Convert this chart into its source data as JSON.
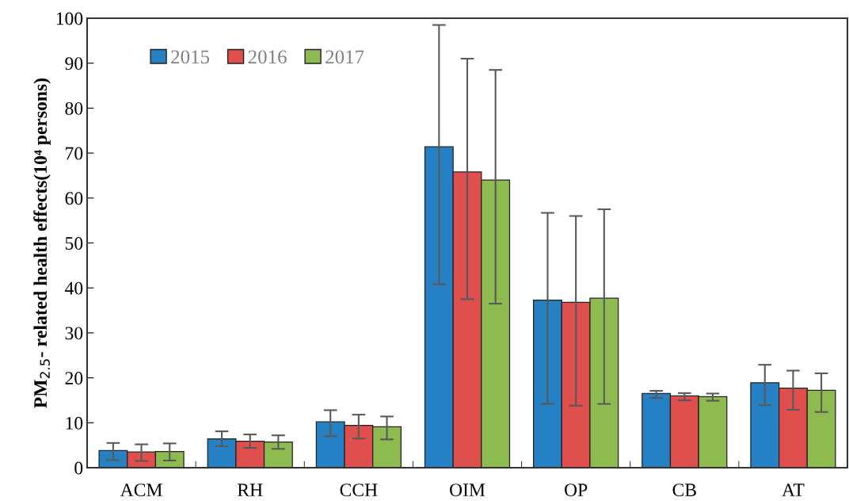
{
  "chart_data": {
    "type": "bar",
    "ylabel": "PM$_{2.5}$- related health effects(10⁴ persons)",
    "categories": [
      "ACM",
      "RH",
      "CCH",
      "OIM",
      "OP",
      "CB",
      "AT"
    ],
    "series": [
      {
        "name": "2015",
        "color": "#2581c4",
        "values": [
          3.8,
          6.4,
          10.2,
          71.4,
          37.3,
          16.5,
          18.9
        ],
        "errors": [
          [
            1.7,
            5.5
          ],
          [
            4.8,
            8.1
          ],
          [
            7.0,
            12.8
          ],
          [
            40.8,
            98.5
          ],
          [
            14.2,
            56.7
          ],
          [
            15.5,
            17.1
          ],
          [
            13.9,
            22.9
          ]
        ]
      },
      {
        "name": "2016",
        "color": "#de4f4e",
        "values": [
          3.5,
          5.9,
          9.4,
          65.8,
          36.8,
          16.0,
          17.7
        ],
        "errors": [
          [
            1.5,
            5.2
          ],
          [
            4.4,
            7.4
          ],
          [
            6.5,
            11.8
          ],
          [
            37.5,
            91.0
          ],
          [
            13.8,
            56.0
          ],
          [
            15.0,
            16.6
          ],
          [
            12.9,
            21.6
          ]
        ]
      },
      {
        "name": "2017",
        "color": "#8dbb4f",
        "values": [
          3.6,
          5.7,
          9.1,
          64.0,
          37.7,
          15.8,
          17.2
        ],
        "errors": [
          [
            1.6,
            5.4
          ],
          [
            4.2,
            7.2
          ],
          [
            6.3,
            11.4
          ],
          [
            36.5,
            88.5
          ],
          [
            14.2,
            57.5
          ],
          [
            14.9,
            16.5
          ],
          [
            12.4,
            21.0
          ]
        ]
      }
    ],
    "ylim": [
      0,
      100
    ],
    "yticks": [
      0,
      10,
      20,
      30,
      40,
      50,
      60,
      70,
      80,
      90,
      100
    ],
    "grid": false,
    "legend": "top left"
  }
}
